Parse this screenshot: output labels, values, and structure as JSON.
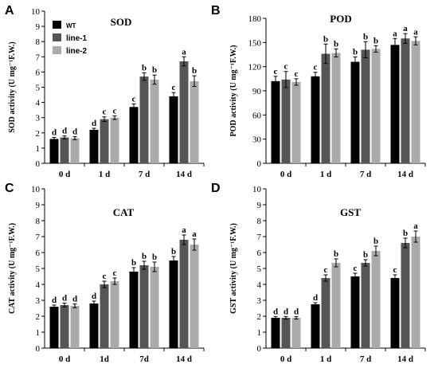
{
  "legend": [
    "WT",
    "line-1",
    "line-2"
  ],
  "colors": {
    "WT": "#000000",
    "line-1": "#555555",
    "line-2": "#aaaaaa"
  },
  "chart_data": [
    {
      "letter": "A",
      "title": "SOD",
      "type": "bar",
      "ylabel": "SOD activity (U mg⁻¹F.W.)",
      "ylim": [
        0,
        10
      ],
      "ytick_step": 1,
      "categories": [
        "0 d",
        "1 d",
        "7 d",
        "14 d"
      ],
      "series": [
        {
          "name": "WT",
          "values": [
            1.6,
            2.2,
            3.7,
            4.4
          ],
          "errors": [
            0.1,
            0.1,
            0.2,
            0.25
          ]
        },
        {
          "name": "line-1",
          "values": [
            1.7,
            2.9,
            5.7,
            6.7
          ],
          "errors": [
            0.1,
            0.15,
            0.25,
            0.3
          ]
        },
        {
          "name": "line-2",
          "values": [
            1.65,
            3.0,
            5.5,
            5.4
          ],
          "errors": [
            0.1,
            0.12,
            0.3,
            0.35
          ]
        }
      ],
      "letters": [
        [
          "d",
          "d",
          "d"
        ],
        [
          "d",
          "c",
          "c"
        ],
        [
          "c",
          "b",
          "b"
        ],
        [
          "c",
          "a",
          "b"
        ]
      ]
    },
    {
      "letter": "B",
      "title": "POD",
      "type": "bar",
      "ylabel": "POD activity (U mg⁻¹F.W.)",
      "ylim": [
        0,
        180
      ],
      "ytick_step": 30,
      "categories": [
        "0 d",
        "1 d",
        "7 d",
        "14 d"
      ],
      "series": [
        {
          "name": "WT",
          "values": [
            102,
            108,
            126,
            147
          ],
          "errors": [
            6,
            5,
            6,
            8
          ]
        },
        {
          "name": "line-1",
          "values": [
            104,
            136,
            141,
            155
          ],
          "errors": [
            10,
            12,
            10,
            6
          ]
        },
        {
          "name": "line-2",
          "values": [
            101,
            137,
            142,
            152
          ],
          "errors": [
            4,
            5,
            4,
            5
          ]
        }
      ],
      "letters": [
        [
          "c",
          "c",
          "c"
        ],
        [
          "c",
          "b",
          "b"
        ],
        [
          "b",
          "b",
          "b"
        ],
        [
          "a",
          "a",
          "a"
        ]
      ]
    },
    {
      "letter": "C",
      "title": "CAT",
      "type": "bar",
      "ylabel": "CAT activity (U mg⁻¹F.W.)",
      "ylim": [
        0,
        10
      ],
      "ytick_step": 1,
      "categories": [
        "0 d",
        "1d",
        "7d",
        "14 d"
      ],
      "series": [
        {
          "name": "WT",
          "values": [
            2.6,
            2.8,
            4.8,
            5.5
          ],
          "errors": [
            0.1,
            0.15,
            0.25,
            0.25
          ]
        },
        {
          "name": "line-1",
          "values": [
            2.7,
            4.0,
            5.2,
            6.8
          ],
          "errors": [
            0.12,
            0.2,
            0.25,
            0.3
          ]
        },
        {
          "name": "line-2",
          "values": [
            2.65,
            4.2,
            5.1,
            6.5
          ],
          "errors": [
            0.12,
            0.2,
            0.3,
            0.35
          ]
        }
      ],
      "letters": [
        [
          "d",
          "d",
          "d"
        ],
        [
          "d",
          "c",
          "c"
        ],
        [
          "b",
          "b",
          "b"
        ],
        [
          "b",
          "a",
          "a"
        ]
      ]
    },
    {
      "letter": "D",
      "title": "GST",
      "type": "bar",
      "ylabel": "GST activity (U mg⁻¹F.W.)",
      "ylim": [
        0,
        10
      ],
      "ytick_step": 1,
      "categories": [
        "0 d",
        "1 d",
        "7 d",
        "14 d"
      ],
      "series": [
        {
          "name": "WT",
          "values": [
            1.9,
            2.75,
            4.5,
            4.4
          ],
          "errors": [
            0.08,
            0.1,
            0.2,
            0.2
          ]
        },
        {
          "name": "line-1",
          "values": [
            1.9,
            4.4,
            5.35,
            6.6
          ],
          "errors": [
            0.08,
            0.2,
            0.2,
            0.3
          ]
        },
        {
          "name": "line-2",
          "values": [
            1.9,
            5.35,
            6.1,
            7.0
          ],
          "errors": [
            0.08,
            0.25,
            0.3,
            0.35
          ]
        }
      ],
      "letters": [
        [
          "d",
          "d",
          "d"
        ],
        [
          "d",
          "c",
          "b"
        ],
        [
          "c",
          "b",
          "b"
        ],
        [
          "c",
          "b",
          "a"
        ]
      ]
    }
  ]
}
